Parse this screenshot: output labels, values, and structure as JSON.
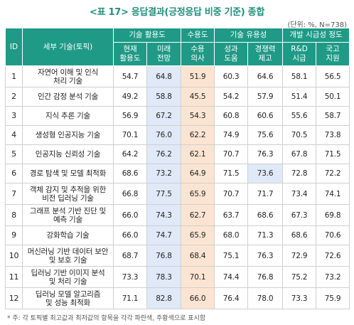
{
  "title": "<표 17> 응답결과(긍정응답 비중 기준) 종합",
  "unit": "(단위: %, N=738)",
  "header": {
    "id": "ID",
    "name": "세부 기술(토픽)",
    "groups": [
      "기술 활용도",
      "수용도",
      "기술 유용성",
      "개발 시급성 정도"
    ],
    "cols": [
      "현재\n활용도",
      "미래\n전망",
      "수용\n의사",
      "성과\n도움",
      "경쟁력\n제고",
      "R&D\n시급",
      "국고\n지원"
    ]
  },
  "rows": [
    {
      "id": "1",
      "name": "자연어 이해 및 인식\n처리 기술",
      "values": [
        "54.7",
        "64.8",
        "51.9",
        "60.3",
        "64.6",
        "58.1",
        "56.5"
      ]
    },
    {
      "id": "2",
      "name": "인간 감정 분석 기술",
      "values": [
        "49.2",
        "58.8",
        "45.5",
        "54.2",
        "57.9",
        "51.4",
        "50.1"
      ]
    },
    {
      "id": "3",
      "name": "지식 추론 기술",
      "values": [
        "56.9",
        "67.2",
        "54.3",
        "60.8",
        "60.6",
        "55.6",
        "58.7"
      ]
    },
    {
      "id": "4",
      "name": "생성형 인공지능 기술",
      "values": [
        "70.1",
        "76.0",
        "62.2",
        "74.9",
        "75.6",
        "70.5",
        "73.8"
      ]
    },
    {
      "id": "5",
      "name": "인공지능 신뢰성 기술",
      "values": [
        "64.2",
        "76.2",
        "62.1",
        "70.7",
        "76.3",
        "67.8",
        "71.5"
      ]
    },
    {
      "id": "6",
      "name": "경로 탐색 및 모델 최적화",
      "values": [
        "68.6",
        "73.2",
        "64.9",
        "71.5",
        "73.6",
        "72.8",
        "72.2"
      ]
    },
    {
      "id": "7",
      "name": "객체 감지 및 추적을 위한\n비전 딥러닝 기술",
      "values": [
        "66.8",
        "77.5",
        "65.9",
        "70.7",
        "71.7",
        "73.4",
        "74.1"
      ]
    },
    {
      "id": "8",
      "name": "그래프 분석 기반 진단 및\n예측 기술",
      "values": [
        "66.0",
        "74.3",
        "62.7",
        "63.7",
        "68.6",
        "67.3",
        "69.8"
      ]
    },
    {
      "id": "9",
      "name": "강화학습 기술",
      "values": [
        "66.0",
        "74.7",
        "65.9",
        "68.0",
        "71.3",
        "68.6",
        "70.6"
      ]
    },
    {
      "id": "10",
      "name": "머신러닝 기반 데이터 보안\n및 보호 기술",
      "values": [
        "68.7",
        "76.8",
        "68.4",
        "75.1",
        "76.3",
        "72.9",
        "72.6"
      ]
    },
    {
      "id": "11",
      "name": "딥러닝 기반 이미지 분석\n및 처리 기술",
      "values": [
        "73.3",
        "78.3",
        "70.1",
        "74.4",
        "76.8",
        "75.2",
        "73.2"
      ]
    },
    {
      "id": "12",
      "name": "딥러닝 모델 알고리즘\n및 성능 최적화",
      "values": [
        "71.1",
        "82.8",
        "66.0",
        "76.4",
        "78.0",
        "73.3",
        "75.9"
      ]
    }
  ],
  "highlight": {
    "row": 5,
    "col": 4,
    "color": "#dfe9f7"
  },
  "colors": {
    "header": "#1f9a87",
    "title": "#1f8f7c",
    "blue_col": "#dfe9f7",
    "orange_col": "#fbe5d2"
  },
  "note": "* 주: 각 토픽별 최고값과 최저값의 항목을 각각 파란색, 주황색으로 표시함"
}
